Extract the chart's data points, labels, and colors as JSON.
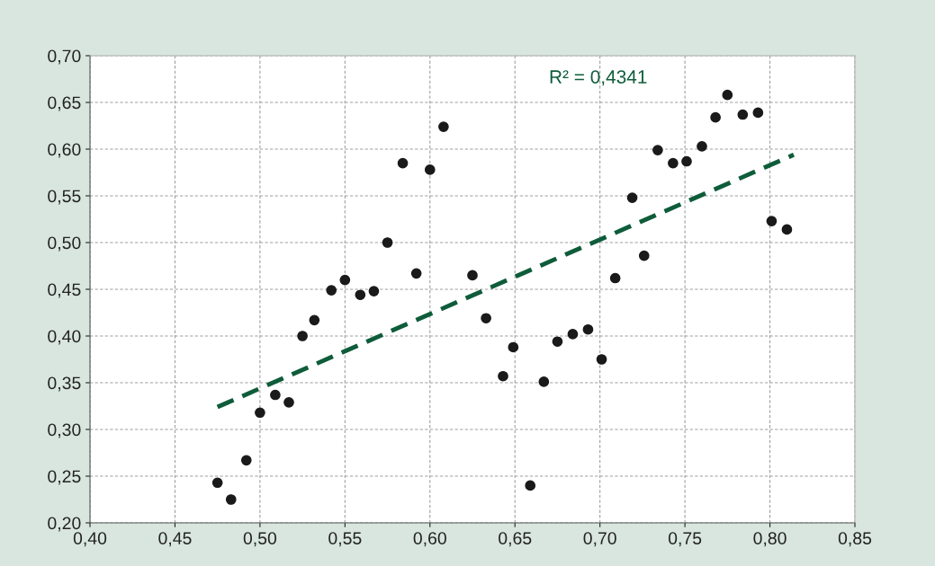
{
  "chart_data": {
    "type": "scatter",
    "xlim": [
      0.4,
      0.85
    ],
    "ylim": [
      0.2,
      0.7
    ],
    "xticks": [
      {
        "value": 0.4,
        "label": "0,40"
      },
      {
        "value": 0.45,
        "label": "0,45"
      },
      {
        "value": 0.5,
        "label": "0,50"
      },
      {
        "value": 0.55,
        "label": "0,55"
      },
      {
        "value": 0.6,
        "label": "0,60"
      },
      {
        "value": 0.65,
        "label": "0,65"
      },
      {
        "value": 0.7,
        "label": "0,70"
      },
      {
        "value": 0.75,
        "label": "0,75"
      },
      {
        "value": 0.8,
        "label": "0,80"
      },
      {
        "value": 0.85,
        "label": "0,85"
      }
    ],
    "yticks": [
      {
        "value": 0.2,
        "label": "0,20"
      },
      {
        "value": 0.25,
        "label": "0,25"
      },
      {
        "value": 0.3,
        "label": "0,30"
      },
      {
        "value": 0.35,
        "label": "0,35"
      },
      {
        "value": 0.4,
        "label": "0,40"
      },
      {
        "value": 0.45,
        "label": "0,45"
      },
      {
        "value": 0.5,
        "label": "0,50"
      },
      {
        "value": 0.55,
        "label": "0,55"
      },
      {
        "value": 0.6,
        "label": "0,60"
      },
      {
        "value": 0.65,
        "label": "0,65"
      },
      {
        "value": 0.7,
        "label": "0,70"
      }
    ],
    "grid": true,
    "annotations": [
      "R² = 0,4341"
    ],
    "series": [
      {
        "marker": "circle",
        "color": "#1a1a1a",
        "x": [
          0.475,
          0.483,
          0.492,
          0.5,
          0.509,
          0.517,
          0.525,
          0.532,
          0.542,
          0.55,
          0.559,
          0.567,
          0.575,
          0.584,
          0.592,
          0.6,
          0.608,
          0.625,
          0.633,
          0.643,
          0.649,
          0.659,
          0.667,
          0.675,
          0.684,
          0.693,
          0.701,
          0.709,
          0.719,
          0.726,
          0.734,
          0.743,
          0.751,
          0.76,
          0.768,
          0.775,
          0.784,
          0.793,
          0.801,
          0.81
        ],
        "values": [
          0.243,
          0.225,
          0.267,
          0.318,
          0.337,
          0.329,
          0.4,
          0.417,
          0.449,
          0.46,
          0.444,
          0.448,
          0.5,
          0.585,
          0.467,
          0.578,
          0.624,
          0.465,
          0.419,
          0.357,
          0.388,
          0.24,
          0.351,
          0.394,
          0.402,
          0.407,
          0.375,
          0.462,
          0.548,
          0.486,
          0.599,
          0.585,
          0.587,
          0.603,
          0.634,
          0.658,
          0.637,
          0.639,
          0.523,
          0.514
        ]
      },
      {
        "type": "line",
        "marker": "none",
        "color": "#0e5c3a",
        "line_style": "dashed",
        "x": [
          0.475,
          0.814
        ],
        "values": [
          0.324,
          0.594
        ]
      }
    ]
  }
}
